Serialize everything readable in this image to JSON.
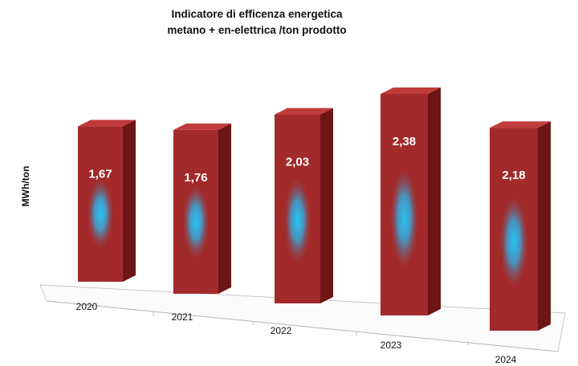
{
  "chart_data": {
    "type": "bar",
    "title": "Indicatore di efficenza energetica",
    "subtitle": "metano + en-elettrica /ton prodotto",
    "xlabel": "",
    "ylabel": "MWh/ton",
    "categories": [
      "2020",
      "2021",
      "2022",
      "2023",
      "2024"
    ],
    "values": [
      1.67,
      1.76,
      2.03,
      2.38,
      2.18
    ],
    "value_labels": [
      "1,67",
      "1,76",
      "2,03",
      "2,38",
      "2,18"
    ],
    "ylim": [
      0,
      2.38
    ],
    "grid": false,
    "legend": "none",
    "style": "3d-column"
  },
  "colors": {
    "bar_front": "#a32a2a",
    "bar_top": "#c03b3b",
    "bar_side": "#6e1515",
    "glow": "#27c4f2",
    "floor": "#c8c8c8"
  }
}
